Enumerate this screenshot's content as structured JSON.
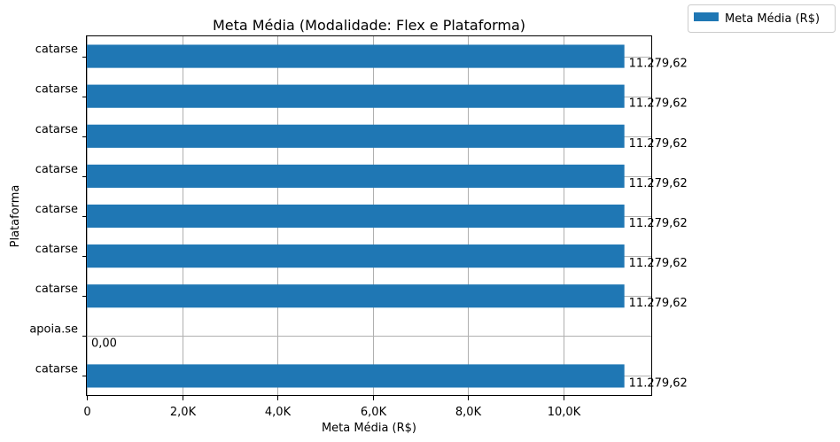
{
  "chart_data": {
    "type": "bar",
    "orientation": "horizontal",
    "title": "Meta Média (Modalidade: Flex e Plataforma)",
    "xlabel": "Meta Média (R$)",
    "ylabel": "Plataforma",
    "categories": [
      "catarse",
      "catarse",
      "catarse",
      "catarse",
      "catarse",
      "catarse",
      "catarse",
      "apoia.se",
      "catarse"
    ],
    "series": [
      {
        "name": "Meta Média (R$)",
        "color": "#1f77b4",
        "values": [
          11279.62,
          11279.62,
          11279.62,
          11279.62,
          11279.62,
          11279.62,
          11279.62,
          0,
          11279.62
        ],
        "data_labels": [
          "11.279,62",
          "11.279,62",
          "11.279,62",
          "11.279,62",
          "11.279,62",
          "11.279,62",
          "11.279,62",
          "0,00",
          "11.279,62"
        ]
      }
    ],
    "xlim": [
      0,
      11843.6
    ],
    "xticks": [
      0,
      2000,
      4000,
      6000,
      8000,
      10000
    ],
    "xtick_labels": [
      "0",
      "2,0K",
      "4,0K",
      "6,0K",
      "8,0K",
      "10,0K"
    ],
    "grid": true,
    "legend_position": "outside-top-right"
  }
}
